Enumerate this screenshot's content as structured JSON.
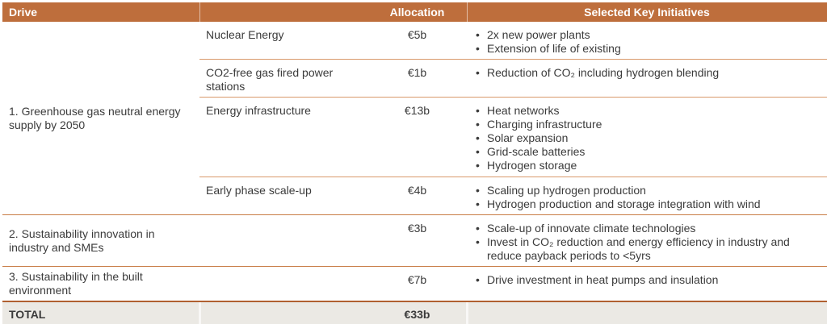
{
  "header": {
    "drive": "Drive",
    "allocation": "Allocation",
    "initiatives": "Selected Key Initiatives"
  },
  "colors": {
    "header_bg": "#BE6E3C",
    "header_text": "#FFFFFF",
    "body_text": "#3B3B3B",
    "minor_line": "#D99A6B",
    "major_line": "#C87C45",
    "total_line": "#B06030",
    "total_bg": "#EBE9E4",
    "page_bg": "#FFFFFF"
  },
  "rows": [
    {
      "drive": "1. Greenhouse gas neutral energy supply by 2050",
      "subrows": [
        {
          "category": "Nuclear Energy",
          "allocation": "€5b",
          "initiatives": [
            "2x new power plants",
            "Extension of life of existing"
          ]
        },
        {
          "category": "CO2-free gas fired power stations",
          "allocation": "€1b",
          "initiatives": [
            "Reduction of CO₂ including hydrogen blending"
          ]
        },
        {
          "category": "Energy infrastructure",
          "allocation": "€13b",
          "initiatives": [
            "Heat networks",
            "Charging infrastructure",
            "Solar expansion",
            "Grid-scale batteries",
            "Hydrogen storage"
          ]
        },
        {
          "category": "Early phase scale-up",
          "allocation": "€4b",
          "initiatives": [
            "Scaling up hydrogen production",
            "Hydrogen production and storage integration with wind"
          ]
        }
      ]
    },
    {
      "drive": "2. Sustainability innovation in industry and SMEs",
      "subrows": [
        {
          "category": "",
          "allocation": "€3b",
          "initiatives": [
            "Scale-up of innovate climate technologies",
            "Invest in CO₂ reduction and energy efficiency in industry and reduce payback periods to <5yrs"
          ]
        }
      ]
    },
    {
      "drive": "3. Sustainability in the built environment",
      "subrows": [
        {
          "category": "",
          "allocation": "€7b",
          "initiatives": [
            "Drive investment in heat pumps and insulation"
          ]
        }
      ]
    }
  ],
  "total": {
    "label": "TOTAL",
    "allocation": "€33b"
  }
}
